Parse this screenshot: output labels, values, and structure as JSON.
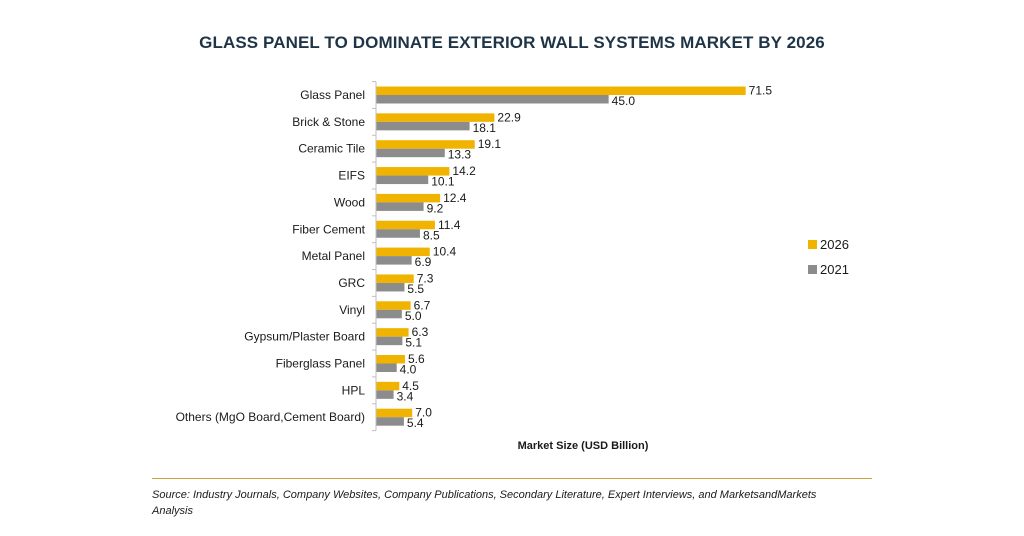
{
  "chart_data": {
    "type": "bar",
    "orientation": "horizontal",
    "title": "GLASS PANEL TO DOMINATE EXTERIOR WALL SYSTEMS MARKET BY 2026",
    "xlabel": "Market Size (USD Billion)",
    "ylabel": "",
    "categories": [
      "Glass Panel",
      "Brick & Stone",
      "Ceramic Tile",
      "EIFS",
      "Wood",
      "Fiber Cement",
      "Metal Panel",
      "GRC",
      "Vinyl",
      "Gypsum/Plaster Board",
      "Fiberglass Panel",
      "HPL",
      "Others (MgO Board,Cement Board)"
    ],
    "series": [
      {
        "name": "2026",
        "color": "#f0b400",
        "values": [
          71.5,
          22.9,
          19.1,
          14.2,
          12.4,
          11.4,
          10.4,
          7.3,
          6.7,
          6.3,
          5.6,
          4.5,
          7.0
        ]
      },
      {
        "name": "2021",
        "color": "#8c8c8c",
        "values": [
          45.0,
          18.1,
          13.3,
          10.1,
          9.2,
          8.5,
          6.9,
          5.5,
          5.0,
          5.1,
          4.0,
          3.4,
          5.4
        ]
      }
    ],
    "value_labels": [
      [
        "71.5",
        "22.9",
        "19.1",
        "14.2",
        "12.4",
        "11.4",
        "10.4",
        "7.3",
        "6.7",
        "6.3",
        "5.6",
        "4.5",
        "7.0"
      ],
      [
        "45.0",
        "18.1",
        "13.3",
        "10.1",
        "9.2",
        "8.5",
        "6.9",
        "5.5",
        "5.0",
        "5.1",
        "4.0",
        "3.4",
        "5.4"
      ]
    ],
    "xlim": [
      0,
      80
    ],
    "grid": false,
    "legend_position": "right"
  },
  "source_note": "Source: Industry Journals, Company Websites, Company Publications, Secondary Literature, Expert Interviews, and MarketsandMarkets Analysis"
}
